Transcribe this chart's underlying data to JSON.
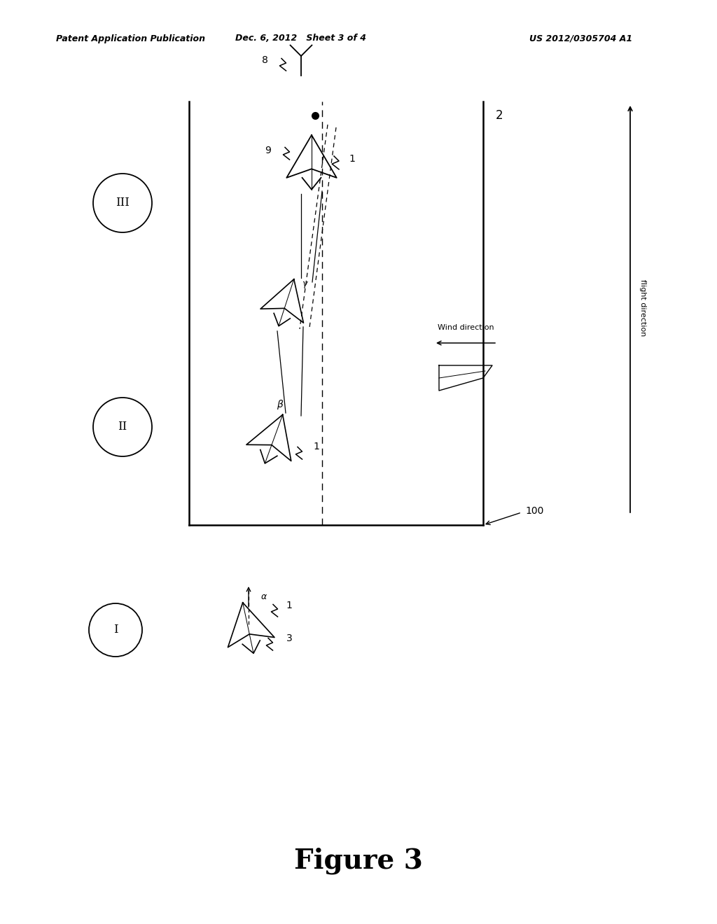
{
  "title": "Figure 3",
  "patent_left": "Patent Application Publication",
  "patent_mid": "Dec. 6, 2012   Sheet 3 of 4",
  "patent_right": "US 2012/0305704 A1",
  "bg_color": "#ffffff",
  "flight_direction_text": "flight direction",
  "wind_direction_text": "Wind direction"
}
